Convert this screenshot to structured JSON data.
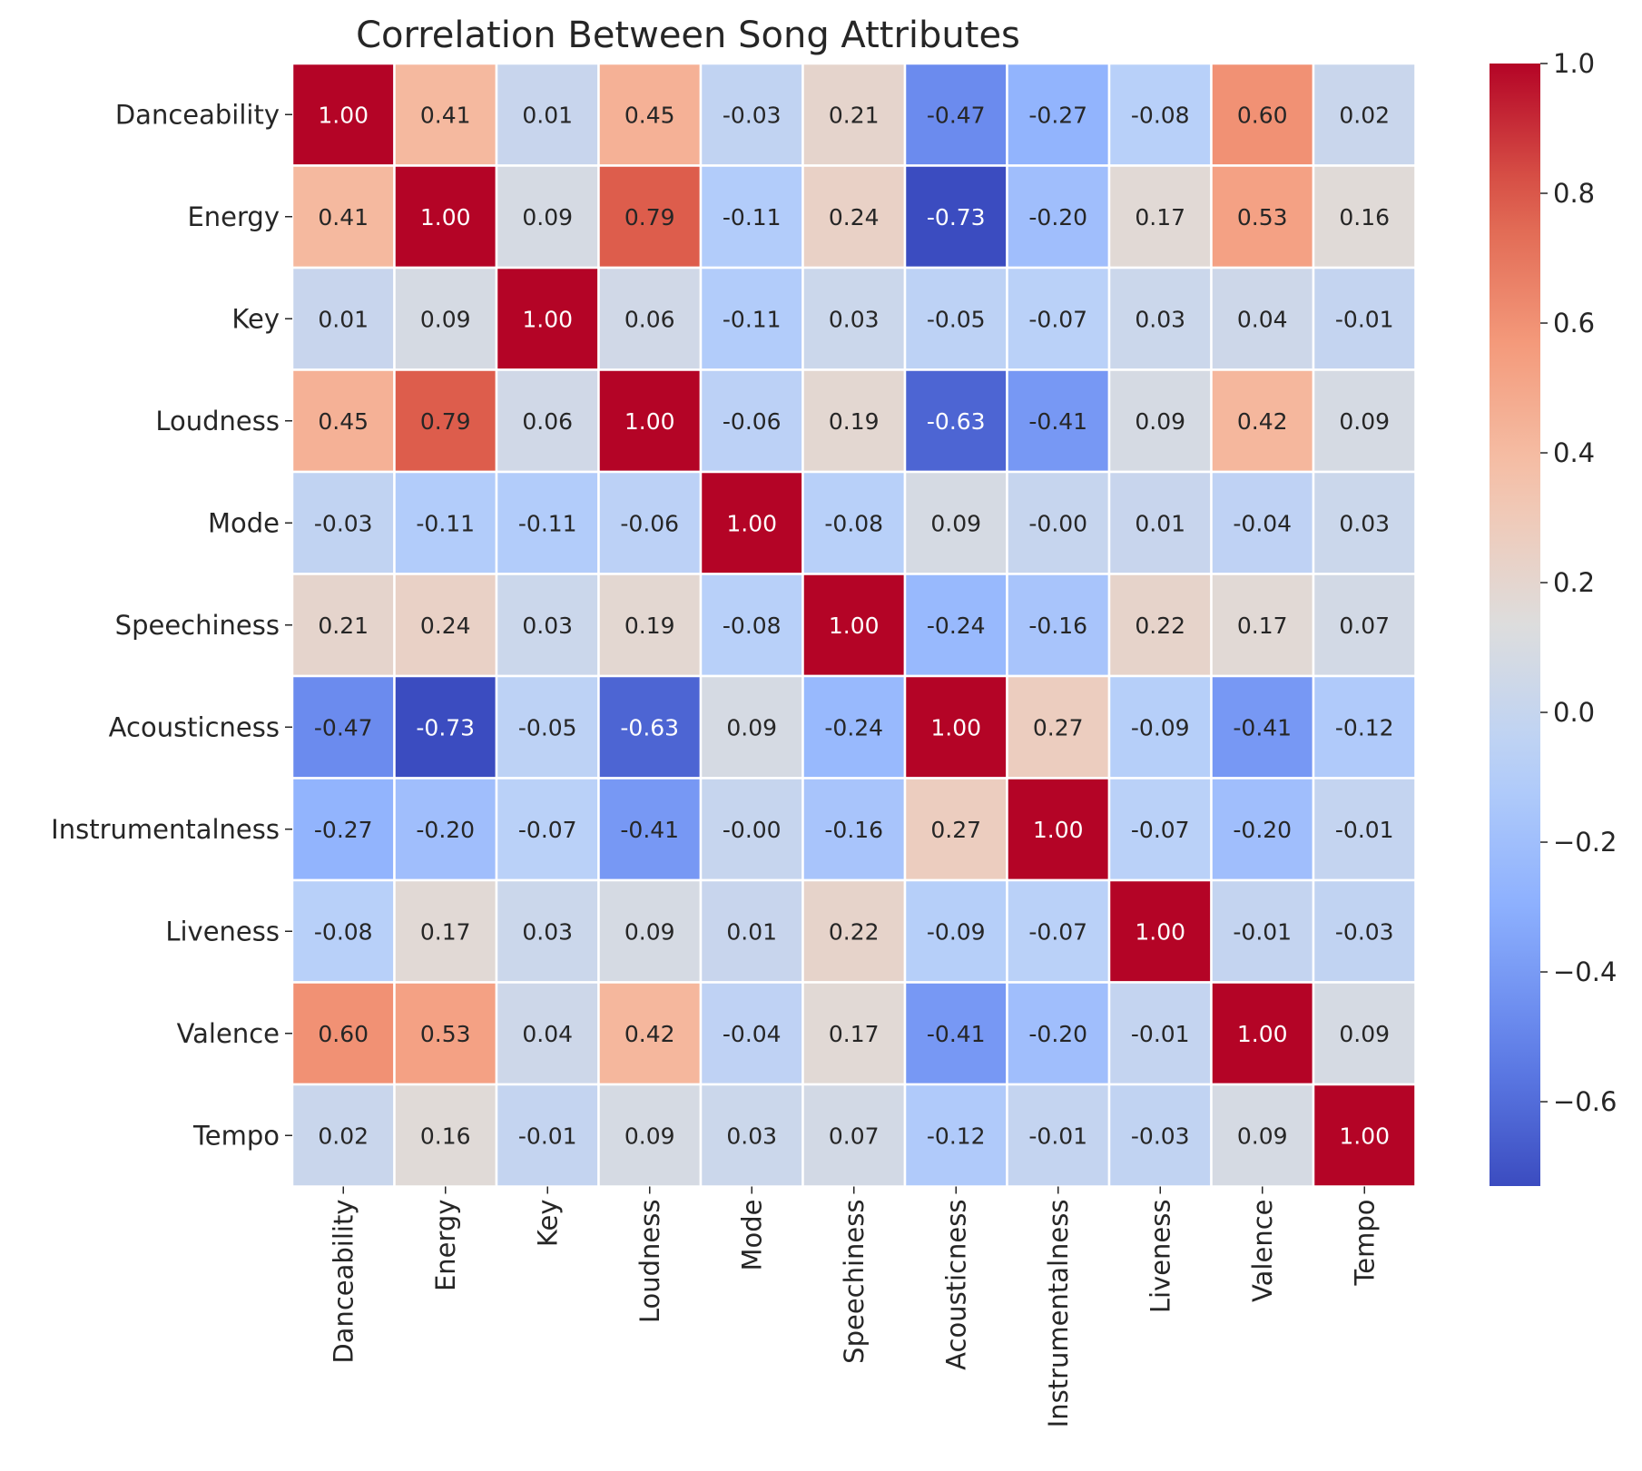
{
  "chart_data": {
    "type": "heatmap",
    "title": "Correlation Between Song Attributes",
    "colormap": "coolwarm",
    "vmin": -0.73,
    "vmax": 1.0,
    "labels": [
      "Danceability",
      "Energy",
      "Key",
      "Loudness",
      "Mode",
      "Speechiness",
      "Acousticness",
      "Instrumentalness",
      "Liveness",
      "Valence",
      "Tempo"
    ],
    "display": [
      [
        "1.00",
        "0.41",
        "0.01",
        "0.45",
        "-0.03",
        "0.21",
        "-0.47",
        "-0.27",
        "-0.08",
        "0.60",
        "0.02"
      ],
      [
        "0.41",
        "1.00",
        "0.09",
        "0.79",
        "-0.11",
        "0.24",
        "-0.73",
        "-0.20",
        "0.17",
        "0.53",
        "0.16"
      ],
      [
        "0.01",
        "0.09",
        "1.00",
        "0.06",
        "-0.11",
        "0.03",
        "-0.05",
        "-0.07",
        "0.03",
        "0.04",
        "-0.01"
      ],
      [
        "0.45",
        "0.79",
        "0.06",
        "1.00",
        "-0.06",
        "0.19",
        "-0.63",
        "-0.41",
        "0.09",
        "0.42",
        "0.09"
      ],
      [
        "-0.03",
        "-0.11",
        "-0.11",
        "-0.06",
        "1.00",
        "-0.08",
        "0.09",
        "-0.00",
        "0.01",
        "-0.04",
        "0.03"
      ],
      [
        "0.21",
        "0.24",
        "0.03",
        "0.19",
        "-0.08",
        "1.00",
        "-0.24",
        "-0.16",
        "0.22",
        "0.17",
        "0.07"
      ],
      [
        "-0.47",
        "-0.73",
        "-0.05",
        "-0.63",
        "0.09",
        "-0.24",
        "1.00",
        "0.27",
        "-0.09",
        "-0.41",
        "-0.12"
      ],
      [
        "-0.27",
        "-0.20",
        "-0.07",
        "-0.41",
        "-0.00",
        "-0.16",
        "0.27",
        "1.00",
        "-0.07",
        "-0.20",
        "-0.01"
      ],
      [
        "-0.08",
        "0.17",
        "0.03",
        "0.09",
        "0.01",
        "0.22",
        "-0.09",
        "-0.07",
        "1.00",
        "-0.01",
        "-0.03"
      ],
      [
        "0.60",
        "0.53",
        "0.04",
        "0.42",
        "-0.04",
        "0.17",
        "-0.41",
        "-0.20",
        "-0.01",
        "1.00",
        "0.09"
      ],
      [
        "0.02",
        "0.16",
        "-0.01",
        "0.09",
        "0.03",
        "0.07",
        "-0.12",
        "-0.01",
        "-0.03",
        "0.09",
        "1.00"
      ]
    ],
    "colorbar_ticks": [
      "1.0",
      "0.8",
      "0.6",
      "0.4",
      "0.2",
      "0.0",
      "−0.2",
      "−0.4",
      "−0.6"
    ],
    "colorbar_tick_values": [
      1.0,
      0.8,
      0.6,
      0.4,
      0.2,
      0.0,
      -0.2,
      -0.4,
      -0.6
    ],
    "grid": false,
    "colorbar_position": "right"
  }
}
